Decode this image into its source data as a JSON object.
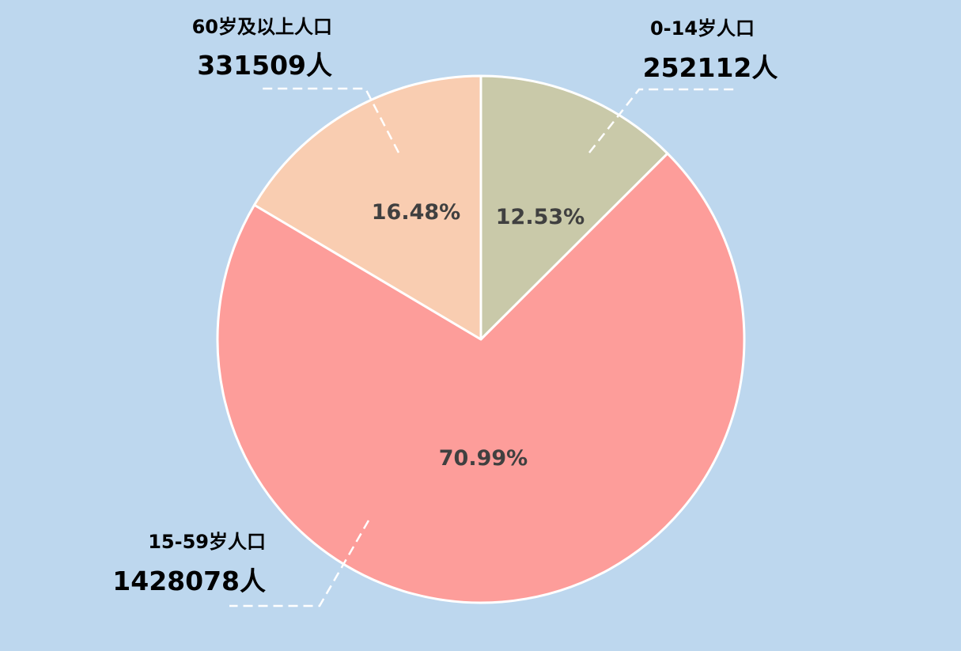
{
  "chart_data": {
    "type": "pie",
    "start_angle_deg": 0,
    "direction": "clockwise",
    "slices": [
      {
        "category": "0-14岁人口",
        "value": 252112,
        "value_label": "252112人",
        "percent_label": "12.53%",
        "color": "#C9C9A9"
      },
      {
        "category": "15-59岁人口",
        "value": 1428078,
        "value_label": "1428078人",
        "percent_label": "70.99%",
        "color": "#FD9D9A"
      },
      {
        "category": "60岁及以上人口",
        "value": 331509,
        "value_label": "331509人",
        "percent_label": "16.48%",
        "color": "#F9CDB1"
      }
    ],
    "slice_border_color": "#FFFFFF",
    "background_color": "#BDD7EE",
    "legend": "none"
  }
}
